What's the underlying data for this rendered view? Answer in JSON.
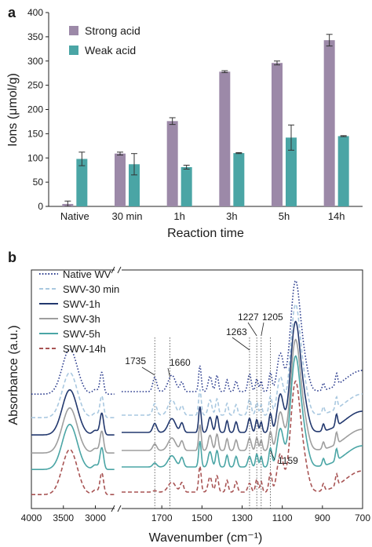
{
  "chart_data": [
    {
      "panel_label": "a",
      "type": "bar",
      "xlabel": "Reaction time",
      "ylabel": "Ions (μmol/g)",
      "ylim": [
        0,
        400
      ],
      "yticks": [
        0,
        50,
        100,
        150,
        200,
        250,
        300,
        350,
        400
      ],
      "categories": [
        "Native",
        "30 min",
        "1h",
        "3h",
        "5h",
        "14h"
      ],
      "legend_position": "top-left",
      "series": [
        {
          "name": "Strong acid",
          "color": "#9c89a8",
          "values": [
            5,
            109,
            176,
            278,
            296,
            343
          ],
          "errors": [
            6,
            3,
            7,
            2,
            4,
            12
          ]
        },
        {
          "name": "Weak acid",
          "color": "#4aa5a5",
          "values": [
            98,
            87,
            81,
            110,
            142,
            145
          ],
          "errors": [
            14,
            22,
            4,
            1,
            26,
            1
          ]
        }
      ]
    },
    {
      "panel_label": "b",
      "type": "line",
      "xlabel": "Wavenumber (cm⁻¹)",
      "ylabel": "Absorbance (a.u.)",
      "x_reversed": true,
      "x_broken": true,
      "xticks_left": [
        4000,
        3500,
        3000
      ],
      "xticks_right": [
        1700,
        1500,
        1300,
        1100,
        900,
        700
      ],
      "legend_position": "top-left",
      "series": [
        {
          "name": "Native WV",
          "color": "#2e3f8f",
          "dash": "dotted"
        },
        {
          "name": "SWV-30 min",
          "color": "#a9c8e0",
          "dash": "dashed"
        },
        {
          "name": "SWV-1h",
          "color": "#22386e",
          "dash": "solid"
        },
        {
          "name": "SWV-3h",
          "color": "#9e9e9e",
          "dash": "solid"
        },
        {
          "name": "SWV-5h",
          "color": "#4aa5a5",
          "dash": "solid"
        },
        {
          "name": "SWV-14h",
          "color": "#a85454",
          "dash": "dashed"
        }
      ],
      "annotations": [
        "1735",
        "1660",
        "1263",
        "1227",
        "1205",
        "1159"
      ],
      "annotation_wavenumbers": [
        1735,
        1660,
        1263,
        1227,
        1205,
        1159
      ]
    }
  ]
}
